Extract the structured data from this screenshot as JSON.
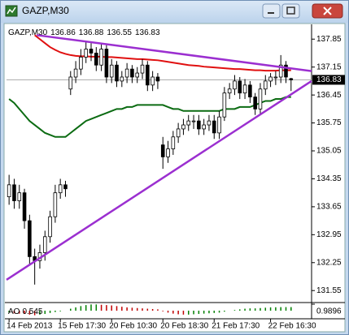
{
  "chart_data": {
    "type": "candlestick",
    "title": "GAZP,M30",
    "info_values": [
      136.86,
      136.88,
      136.55,
      136.83
    ],
    "categories": [
      "14 Feb 2013",
      null,
      null,
      null,
      null,
      null,
      null,
      null,
      null,
      null,
      "15 Feb 17:30",
      null,
      null,
      null,
      null,
      null,
      null,
      null,
      null,
      null,
      "20 Feb 10:30",
      null,
      null,
      null,
      null,
      null,
      null,
      null,
      null,
      null,
      "20 Feb 18:30",
      null,
      null,
      null,
      null,
      null,
      null,
      null,
      null,
      null,
      "21 Feb 17:30",
      null,
      null,
      null,
      null,
      null,
      null,
      null,
      null,
      null,
      null,
      "22 Feb 16:30",
      null,
      null,
      null,
      null
    ],
    "open": [
      133.9,
      134.2,
      133.8,
      134.0,
      133.3,
      132.4,
      132.3,
      132.5,
      132.9,
      133.4,
      134.0,
      134.2,
      136.6,
      136.9,
      137.1,
      137.4,
      137.6,
      137.5,
      137.2,
      137.6,
      136.9,
      137.2,
      136.8,
      136.9,
      137.1,
      136.9,
      137.0,
      137.2,
      136.7,
      136.9,
      135.2,
      134.9,
      135.1,
      135.4,
      135.6,
      135.7,
      135.8,
      135.8,
      135.6,
      135.7,
      135.8,
      135.5,
      135.9,
      136.5,
      136.6,
      136.8,
      136.5,
      136.7,
      136.4,
      136.1,
      136.6,
      136.8,
      136.9,
      136.9,
      137.2,
      136.86
    ],
    "high": [
      134.45,
      134.35,
      134.2,
      134.1,
      133.45,
      132.6,
      132.7,
      133.05,
      133.55,
      134.2,
      134.35,
      134.3,
      137.05,
      137.3,
      137.6,
      137.8,
      137.75,
      137.65,
      137.75,
      137.7,
      137.35,
      137.3,
      137.05,
      137.25,
      137.2,
      137.15,
      137.35,
      137.3,
      137.05,
      137.0,
      135.4,
      135.3,
      135.55,
      135.75,
      135.85,
      135.95,
      135.95,
      135.95,
      135.85,
      135.95,
      135.95,
      136.05,
      136.65,
      136.75,
      136.95,
      136.9,
      136.85,
      136.8,
      136.5,
      136.75,
      136.95,
      137.0,
      137.05,
      137.45,
      137.3,
      136.88
    ],
    "low": [
      133.7,
      133.6,
      133.6,
      133.1,
      132.2,
      131.7,
      132.1,
      132.3,
      132.75,
      133.25,
      133.85,
      133.9,
      136.45,
      136.75,
      136.95,
      137.25,
      137.3,
      137.05,
      137.05,
      136.75,
      136.75,
      136.65,
      136.65,
      136.75,
      136.75,
      136.75,
      136.85,
      136.55,
      136.55,
      136.6,
      134.6,
      134.75,
      134.95,
      135.25,
      135.45,
      135.55,
      135.6,
      135.45,
      135.45,
      135.55,
      135.35,
      135.35,
      135.8,
      136.35,
      136.45,
      136.35,
      136.35,
      136.25,
      135.95,
      135.95,
      136.45,
      136.65,
      136.7,
      136.75,
      136.75,
      136.55
    ],
    "close": [
      134.2,
      133.8,
      134.0,
      133.3,
      132.4,
      132.3,
      132.5,
      132.9,
      133.4,
      134.0,
      134.2,
      134.1,
      136.9,
      137.1,
      137.4,
      137.6,
      137.5,
      137.2,
      137.6,
      136.9,
      137.2,
      136.8,
      136.9,
      137.1,
      136.9,
      137.0,
      137.2,
      136.7,
      136.9,
      136.8,
      134.9,
      135.1,
      135.4,
      135.6,
      135.7,
      135.8,
      135.8,
      135.6,
      135.7,
      135.8,
      135.5,
      135.9,
      136.5,
      136.6,
      136.8,
      136.5,
      136.7,
      136.4,
      136.1,
      136.6,
      136.8,
      136.9,
      136.9,
      137.2,
      136.9,
      136.83
    ],
    "candle_color": "#000000",
    "xlim": [
      -0.5,
      59
    ],
    "ylim": [
      131.27,
      138.18
    ],
    "yticks": [
      137.85,
      137.15,
      136.45,
      135.75,
      135.05,
      134.35,
      133.65,
      132.95,
      132.25,
      131.55
    ],
    "last_price": 136.83,
    "lines": [
      {
        "color": "#e01010",
        "values": [
          null,
          null,
          null,
          null,
          null,
          137.95,
          137.85,
          137.75,
          137.65,
          137.58,
          137.52,
          137.48,
          137.45,
          137.43,
          137.42,
          137.42,
          137.41,
          137.41,
          137.41,
          137.4,
          137.4,
          137.39,
          137.38,
          137.37,
          137.36,
          137.35,
          137.35,
          137.34,
          137.33,
          137.32,
          137.3,
          137.28,
          137.26,
          137.24,
          137.22,
          137.2,
          137.19,
          137.18,
          137.16,
          137.15,
          137.14,
          137.13,
          137.12,
          137.11,
          137.1,
          137.1,
          137.09,
          137.08,
          137.07,
          137.07,
          137.06,
          137.06,
          137.06,
          137.07,
          137.07,
          137.07
        ]
      },
      {
        "color": "#0b6b12",
        "values": [
          136.35,
          136.25,
          136.1,
          135.95,
          135.8,
          135.7,
          135.6,
          135.5,
          135.45,
          135.4,
          135.4,
          135.4,
          135.5,
          135.6,
          135.7,
          135.8,
          135.85,
          135.9,
          135.95,
          136.0,
          136.05,
          136.1,
          136.1,
          136.15,
          136.15,
          136.2,
          136.2,
          136.2,
          136.2,
          136.2,
          136.2,
          136.15,
          136.1,
          136.1,
          136.05,
          136.05,
          136.05,
          136.05,
          136.05,
          136.05,
          136.05,
          136.05,
          136.1,
          136.1,
          136.1,
          136.15,
          136.15,
          136.15,
          136.2,
          136.25,
          136.3,
          136.3,
          136.35,
          136.35,
          136.4,
          136.4
        ]
      }
    ],
    "trendlines": [
      {
        "color": "#9b2fd0",
        "x": [
          5.4,
          59
        ],
        "values": [
          137.95,
          137.05
        ]
      },
      {
        "color": "#9b2fd0",
        "x": [
          -0.5,
          59
        ],
        "values": [
          131.82,
          136.8
        ]
      }
    ],
    "ao": {
      "name": "AO",
      "values": [
        -0.3,
        -0.4,
        -0.45,
        -0.5,
        -0.6,
        -0.7,
        -0.6,
        -0.5,
        -0.35,
        -0.2,
        -0.1,
        0.0,
        0.3,
        0.5,
        0.7,
        0.85,
        0.95,
        0.95,
        0.9,
        0.85,
        0.8,
        0.7,
        0.6,
        0.5,
        0.45,
        0.4,
        0.35,
        0.3,
        0.25,
        0.2,
        -0.1,
        -0.3,
        -0.45,
        -0.55,
        -0.6,
        -0.6,
        -0.55,
        -0.5,
        -0.45,
        -0.4,
        -0.35,
        -0.3,
        -0.15,
        0.0,
        0.1,
        0.2,
        0.3,
        0.35,
        0.35,
        0.4,
        0.45,
        0.5,
        0.52,
        0.54,
        0.545,
        0.545
      ],
      "ylim": [
        -0.9896,
        0.9896
      ],
      "yticks": [
        {
          "value": 0.9896,
          "label": "0.9896"
        }
      ],
      "up_color": "#008000",
      "down_color": "#c00000"
    }
  }
}
